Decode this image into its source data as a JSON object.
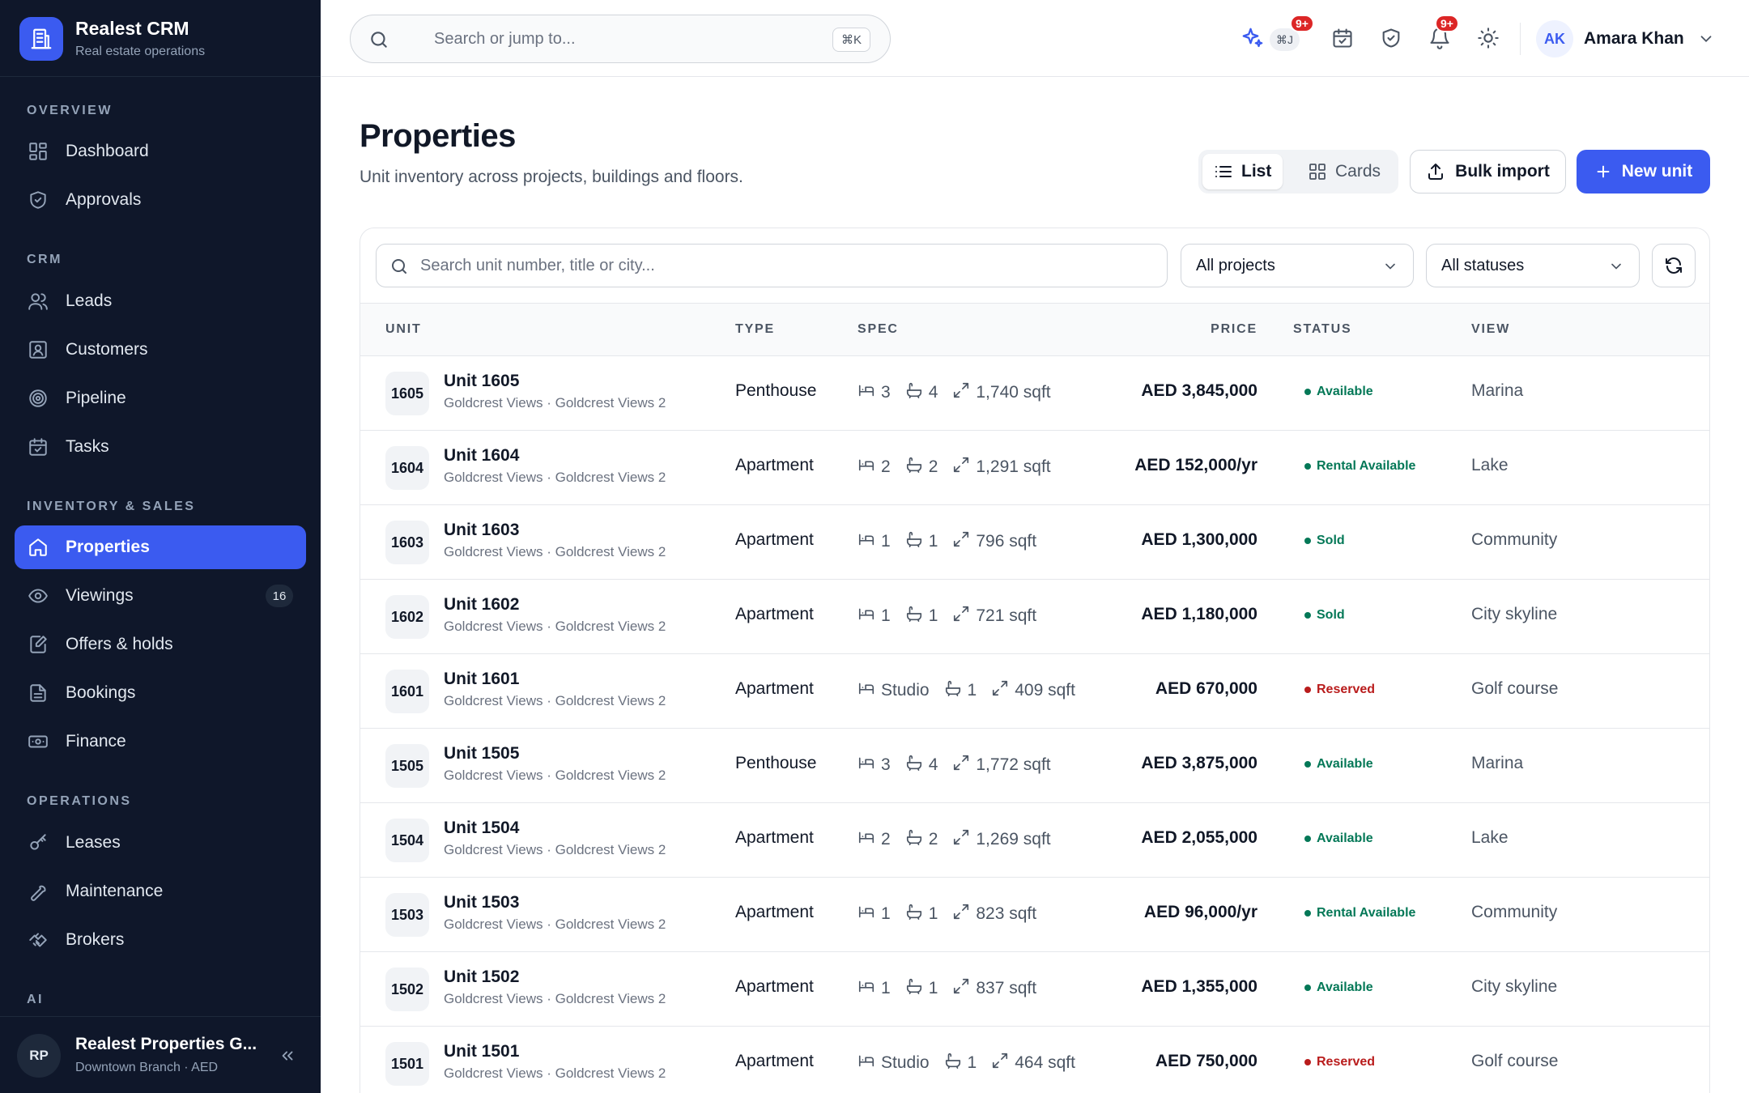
{
  "brand": {
    "name": "Realest CRM",
    "subtitle": "Real estate operations"
  },
  "sidebar": {
    "sections": {
      "overview": "OVERVIEW",
      "crm": "CRM",
      "inventory": "INVENTORY & SALES",
      "operations": "OPERATIONS",
      "ai": "AI"
    },
    "items": {
      "dashboard": "Dashboard",
      "approvals": "Approvals",
      "leads": "Leads",
      "customers": "Customers",
      "pipeline": "Pipeline",
      "tasks": "Tasks",
      "properties": "Properties",
      "viewings": "Viewings",
      "viewings_badge": "16",
      "offers": "Offers & holds",
      "bookings": "Bookings",
      "finance": "Finance",
      "leases": "Leases",
      "maintenance": "Maintenance",
      "brokers": "Brokers"
    },
    "active": "properties",
    "org": {
      "initials": "RP",
      "name": "Realest Properties G...",
      "branch": "Downtown Branch · AED"
    }
  },
  "topbar": {
    "search_placeholder": "Search or jump to...",
    "search_shortcut": "⌘K",
    "ai_shortcut": "⌘J",
    "ai_badge": "9+",
    "notifications_badge": "9+",
    "user": {
      "initials": "AK",
      "name": "Amara Khan"
    }
  },
  "page": {
    "title": "Properties",
    "subtitle": "Unit inventory across projects, buildings and floors.",
    "view_list": "List",
    "view_cards": "Cards",
    "bulk_import": "Bulk import",
    "new_unit": "New unit"
  },
  "filters": {
    "search_placeholder": "Search unit number, title or city...",
    "project": "All projects",
    "status": "All statuses"
  },
  "table": {
    "headers": {
      "unit": "UNIT",
      "type": "TYPE",
      "spec": "SPEC",
      "price": "PRICE",
      "status": "STATUS",
      "view": "VIEW"
    },
    "rows": [
      {
        "num": "1605",
        "title": "Unit 1605",
        "location": "Goldcrest Views · Goldcrest Views 2",
        "type": "Penthouse",
        "beds": "3",
        "baths": "4",
        "area": "1,740 sqft",
        "price": "AED 3,845,000",
        "status": "Available",
        "view": "Marina"
      },
      {
        "num": "1604",
        "title": "Unit 1604",
        "location": "Goldcrest Views · Goldcrest Views 2",
        "type": "Apartment",
        "beds": "2",
        "baths": "2",
        "area": "1,291 sqft",
        "price": "AED 152,000/yr",
        "status": "Rental Available",
        "view": "Lake"
      },
      {
        "num": "1603",
        "title": "Unit 1603",
        "location": "Goldcrest Views · Goldcrest Views 2",
        "type": "Apartment",
        "beds": "1",
        "baths": "1",
        "area": "796 sqft",
        "price": "AED 1,300,000",
        "status": "Sold",
        "view": "Community"
      },
      {
        "num": "1602",
        "title": "Unit 1602",
        "location": "Goldcrest Views · Goldcrest Views 2",
        "type": "Apartment",
        "beds": "1",
        "baths": "1",
        "area": "721 sqft",
        "price": "AED 1,180,000",
        "status": "Sold",
        "view": "City skyline"
      },
      {
        "num": "1601",
        "title": "Unit 1601",
        "location": "Goldcrest Views · Goldcrest Views 2",
        "type": "Apartment",
        "beds": "Studio",
        "baths": "1",
        "area": "409 sqft",
        "price": "AED 670,000",
        "status": "Reserved",
        "view": "Golf course"
      },
      {
        "num": "1505",
        "title": "Unit 1505",
        "location": "Goldcrest Views · Goldcrest Views 2",
        "type": "Penthouse",
        "beds": "3",
        "baths": "4",
        "area": "1,772 sqft",
        "price": "AED 3,875,000",
        "status": "Available",
        "view": "Marina"
      },
      {
        "num": "1504",
        "title": "Unit 1504",
        "location": "Goldcrest Views · Goldcrest Views 2",
        "type": "Apartment",
        "beds": "2",
        "baths": "2",
        "area": "1,269 sqft",
        "price": "AED 2,055,000",
        "status": "Available",
        "view": "Lake"
      },
      {
        "num": "1503",
        "title": "Unit 1503",
        "location": "Goldcrest Views · Goldcrest Views 2",
        "type": "Apartment",
        "beds": "1",
        "baths": "1",
        "area": "823 sqft",
        "price": "AED 96,000/yr",
        "status": "Rental Available",
        "view": "Community"
      },
      {
        "num": "1502",
        "title": "Unit 1502",
        "location": "Goldcrest Views · Goldcrest Views 2",
        "type": "Apartment",
        "beds": "1",
        "baths": "1",
        "area": "837 sqft",
        "price": "AED 1,355,000",
        "status": "Available",
        "view": "City skyline"
      },
      {
        "num": "1501",
        "title": "Unit 1501",
        "location": "Goldcrest Views · Goldcrest Views 2",
        "type": "Apartment",
        "beds": "Studio",
        "baths": "1",
        "area": "464 sqft",
        "price": "AED 750,000",
        "status": "Reserved",
        "view": "Golf course"
      }
    ]
  },
  "colors": {
    "accent": "#3b5bf0",
    "sidebar_bg": "#0f172a",
    "status_available": "#047857",
    "status_sold": "#047857",
    "status_reserved": "#b91c1c",
    "badge": "#dc2626"
  }
}
